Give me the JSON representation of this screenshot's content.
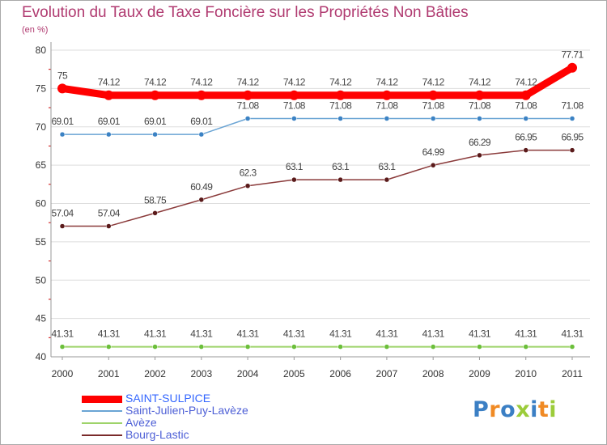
{
  "chart_data": {
    "type": "line",
    "title": "Evolution du Taux de Taxe Foncière sur les Propriétés Non Bâties",
    "ylabel": "(en %)",
    "xlabel": "",
    "ylim": [
      40,
      80
    ],
    "yticks": [
      40,
      45,
      50,
      55,
      60,
      65,
      70,
      75,
      80
    ],
    "categories": [
      "2000",
      "2001",
      "2002",
      "2003",
      "2004",
      "2005",
      "2006",
      "2007",
      "2008",
      "2009",
      "2010",
      "2011"
    ],
    "series": [
      {
        "name": "SAINT-SULPICE",
        "color": "#ff0000",
        "values": [
          75,
          74.12,
          74.12,
          74.12,
          74.12,
          74.12,
          74.12,
          74.12,
          74.12,
          74.12,
          74.12,
          77.71
        ],
        "labels": [
          "75",
          "74.12",
          "74.12",
          "74.12",
          "74.12",
          "74.12",
          "74.12",
          "74.12",
          "74.12",
          "74.12",
          "74.12",
          "77.71"
        ]
      },
      {
        "name": "Saint-Julien-Puy-Lavèze",
        "color": "#6aa4d4",
        "values": [
          69.01,
          69.01,
          69.01,
          69.01,
          71.08,
          71.08,
          71.08,
          71.08,
          71.08,
          71.08,
          71.08,
          71.08
        ],
        "labels": [
          "69.01",
          "69.01",
          "69.01",
          "69.01",
          "71.08",
          "71.08",
          "71.08",
          "71.08",
          "71.08",
          "71.08",
          "71.08",
          "71.08"
        ]
      },
      {
        "name": "Avèze",
        "color": "#9ed36a",
        "values": [
          41.31,
          41.31,
          41.31,
          41.31,
          41.31,
          41.31,
          41.31,
          41.31,
          41.31,
          41.31,
          41.31,
          41.31
        ],
        "labels": [
          "41.31",
          "41.31",
          "41.31",
          "41.31",
          "41.31",
          "41.31",
          "41.31",
          "41.31",
          "41.31",
          "41.31",
          "41.31",
          "41.31"
        ]
      },
      {
        "name": "Bourg-Lastic",
        "color": "#7a2a2a",
        "values": [
          57.04,
          57.04,
          58.75,
          60.49,
          62.3,
          63.1,
          63.1,
          63.1,
          64.99,
          66.29,
          66.95,
          66.95
        ],
        "labels": [
          "57.04",
          "57.04",
          "58.75",
          "60.49",
          "62.3",
          "63.1",
          "63.1",
          "63.1",
          "64.99",
          "66.29",
          "66.95",
          "66.95"
        ]
      }
    ],
    "legend_position": "bottom-left",
    "grid": true
  },
  "brand": {
    "letters": [
      "P",
      "r",
      "o",
      "x",
      "i",
      "t",
      "i"
    ],
    "colors": [
      "#3b7fc4",
      "#f08a24",
      "#3b7fc4",
      "#9ccc3a",
      "#3b7fc4",
      "#f08a24",
      "#9ccc3a"
    ]
  }
}
